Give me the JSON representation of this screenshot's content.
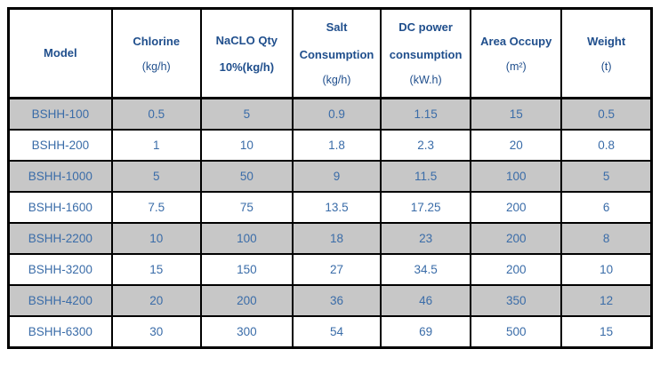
{
  "table": {
    "columns": [
      {
        "id": "model",
        "label": "Model",
        "unit": ""
      },
      {
        "id": "chlorine",
        "label": "Chlorine",
        "unit": "(kg/h)"
      },
      {
        "id": "naclo",
        "label": "NaCLO Qty",
        "unit": "10%(kg/h)"
      },
      {
        "id": "salt",
        "label": "Salt Consumption",
        "unit": "(kg/h)"
      },
      {
        "id": "dc",
        "label": "DC power consumption",
        "unit": "(kW.h)"
      },
      {
        "id": "area",
        "label": "Area Occupy",
        "unit": "(m²)"
      },
      {
        "id": "weight",
        "label": "Weight",
        "unit": "(t)"
      }
    ],
    "rows": [
      {
        "model": "BSHH-100",
        "chlorine": "0.5",
        "naclo": "5",
        "salt": "0.9",
        "dc": "1.15",
        "area": "15",
        "weight": "0.5"
      },
      {
        "model": "BSHH-200",
        "chlorine": "1",
        "naclo": "10",
        "salt": "1.8",
        "dc": "2.3",
        "area": "20",
        "weight": "0.8"
      },
      {
        "model": "BSHH-1000",
        "chlorine": "5",
        "naclo": "50",
        "salt": "9",
        "dc": "11.5",
        "area": "100",
        "weight": "5"
      },
      {
        "model": "BSHH-1600",
        "chlorine": "7.5",
        "naclo": "75",
        "salt": "13.5",
        "dc": "17.25",
        "area": "200",
        "weight": "6"
      },
      {
        "model": "BSHH-2200",
        "chlorine": "10",
        "naclo": "100",
        "salt": "18",
        "dc": "23",
        "area": "200",
        "weight": "8"
      },
      {
        "model": "BSHH-3200",
        "chlorine": "15",
        "naclo": "150",
        "salt": "27",
        "dc": "34.5",
        "area": "200",
        "weight": "10"
      },
      {
        "model": "BSHH-4200",
        "chlorine": "20",
        "naclo": "200",
        "salt": "36",
        "dc": "46",
        "area": "350",
        "weight": "12"
      },
      {
        "model": "BSHH-6300",
        "chlorine": "30",
        "naclo": "300",
        "salt": "54",
        "dc": "69",
        "area": "500",
        "weight": "15"
      }
    ],
    "colors": {
      "header_text": "#1F4E8C",
      "data_text": "#3A6CA8",
      "stripe_gray": "#C7C7C7",
      "border": "#000000",
      "background": "#FFFFFF"
    }
  }
}
